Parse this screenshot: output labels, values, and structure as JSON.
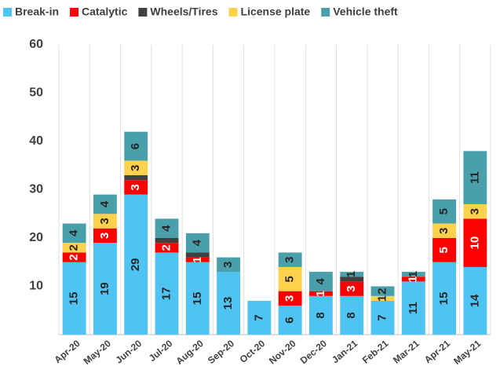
{
  "chart_data": {
    "type": "stacked_bar",
    "categories": [
      "Apr-20",
      "May-20",
      "Jun-20",
      "Jul-20",
      "Aug-20",
      "Sep-20",
      "Oct-20",
      "Nov-20",
      "Dec-20",
      "Jan-21",
      "Feb-21",
      "Mar-21",
      "Apr-21",
      "May-21"
    ],
    "series": [
      {
        "name": "Break-in",
        "color": "#4fc3f2",
        "labels": true,
        "values": [
          15,
          19,
          29,
          17,
          15,
          13,
          7,
          6,
          8,
          8,
          7,
          11,
          15,
          14
        ]
      },
      {
        "name": "Catalytic",
        "color": "#ff0000",
        "labels": true,
        "values": [
          2,
          3,
          3,
          2,
          1,
          0,
          0,
          3,
          1,
          3,
          0,
          1,
          5,
          10
        ]
      },
      {
        "name": "Wheels/Tires",
        "color": "#404040",
        "labels": false,
        "values": [
          0,
          0,
          1,
          1,
          1,
          0,
          0,
          0,
          0,
          1,
          0,
          0,
          0,
          0
        ]
      },
      {
        "name": "License plate",
        "color": "#ffd24d",
        "labels": true,
        "values": [
          2,
          3,
          3,
          0,
          0,
          0,
          0,
          5,
          0,
          0,
          1,
          0,
          3,
          3
        ]
      },
      {
        "name": "Vehicle theft",
        "color": "#4aa0aa",
        "labels": true,
        "values": [
          4,
          4,
          6,
          4,
          4,
          3,
          0,
          3,
          4,
          1,
          2,
          1,
          5,
          11
        ]
      }
    ],
    "ylim": [
      0,
      60
    ],
    "yticks": [
      10,
      20,
      30,
      40,
      50,
      60
    ],
    "grid": true,
    "legend": "top"
  }
}
